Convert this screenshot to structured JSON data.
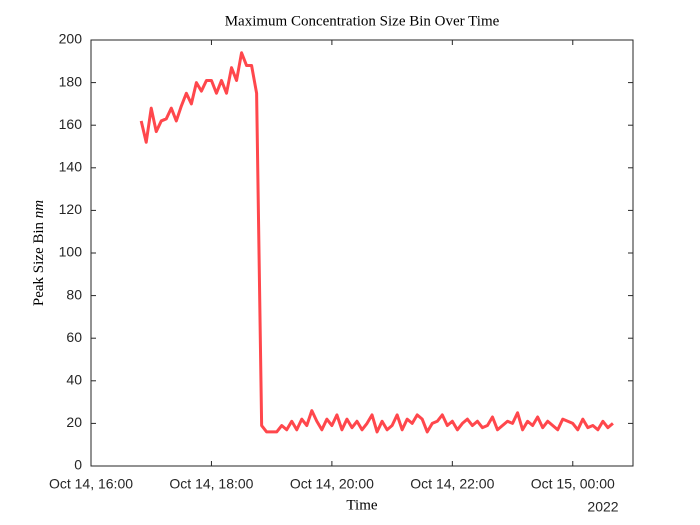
{
  "chart_data": {
    "type": "line",
    "title": "Maximum Concentration Size Bin Over Time",
    "xlabel": "Time",
    "ylabel": "Peak Size Bin",
    "ylabel_unit": "nm",
    "xtick_year_label": "2022",
    "xlim": [
      "2022-10-14 16:00",
      "2022-10-15 01:00"
    ],
    "xticks": [
      {
        "value": "2022-10-14 16:00",
        "label": "Oct 14, 16:00"
      },
      {
        "value": "2022-10-14 18:00",
        "label": "Oct 14, 18:00"
      },
      {
        "value": "2022-10-14 20:00",
        "label": "Oct 14, 20:00"
      },
      {
        "value": "2022-10-14 22:00",
        "label": "Oct 14, 22:00"
      },
      {
        "value": "2022-10-15 00:00",
        "label": "Oct 15, 00:00"
      }
    ],
    "ylim": [
      0,
      200
    ],
    "yticks": [
      0,
      20,
      40,
      60,
      80,
      100,
      120,
      140,
      160,
      180,
      200
    ],
    "x": [
      "2022-10-14 16:50",
      "2022-10-14 16:55",
      "2022-10-14 17:00",
      "2022-10-14 17:05",
      "2022-10-14 17:10",
      "2022-10-14 17:15",
      "2022-10-14 17:20",
      "2022-10-14 17:25",
      "2022-10-14 17:30",
      "2022-10-14 17:35",
      "2022-10-14 17:40",
      "2022-10-14 17:45",
      "2022-10-14 17:50",
      "2022-10-14 17:55",
      "2022-10-14 18:00",
      "2022-10-14 18:05",
      "2022-10-14 18:10",
      "2022-10-14 18:15",
      "2022-10-14 18:20",
      "2022-10-14 18:25",
      "2022-10-14 18:30",
      "2022-10-14 18:35",
      "2022-10-14 18:40",
      "2022-10-14 18:45",
      "2022-10-14 18:50",
      "2022-10-14 18:55",
      "2022-10-14 19:00",
      "2022-10-14 19:05",
      "2022-10-14 19:10",
      "2022-10-14 19:15",
      "2022-10-14 19:20",
      "2022-10-14 19:25",
      "2022-10-14 19:30",
      "2022-10-14 19:35",
      "2022-10-14 19:40",
      "2022-10-14 19:45",
      "2022-10-14 19:50",
      "2022-10-14 19:55",
      "2022-10-14 20:00",
      "2022-10-14 20:05",
      "2022-10-14 20:10",
      "2022-10-14 20:15",
      "2022-10-14 20:20",
      "2022-10-14 20:25",
      "2022-10-14 20:30",
      "2022-10-14 20:35",
      "2022-10-14 20:40",
      "2022-10-14 20:45",
      "2022-10-14 20:50",
      "2022-10-14 20:55",
      "2022-10-14 21:00",
      "2022-10-14 21:05",
      "2022-10-14 21:10",
      "2022-10-14 21:15",
      "2022-10-14 21:20",
      "2022-10-14 21:25",
      "2022-10-14 21:30",
      "2022-10-14 21:35",
      "2022-10-14 21:40",
      "2022-10-14 21:45",
      "2022-10-14 21:50",
      "2022-10-14 21:55",
      "2022-10-14 22:00",
      "2022-10-14 22:05",
      "2022-10-14 22:10",
      "2022-10-14 22:15",
      "2022-10-14 22:20",
      "2022-10-14 22:25",
      "2022-10-14 22:30",
      "2022-10-14 22:35",
      "2022-10-14 22:40",
      "2022-10-14 22:45",
      "2022-10-14 22:50",
      "2022-10-14 22:55",
      "2022-10-14 23:00",
      "2022-10-14 23:05",
      "2022-10-14 23:10",
      "2022-10-14 23:15",
      "2022-10-14 23:20",
      "2022-10-14 23:25",
      "2022-10-14 23:30",
      "2022-10-14 23:35",
      "2022-10-14 23:40",
      "2022-10-14 23:45",
      "2022-10-14 23:50",
      "2022-10-14 23:55",
      "2022-10-15 00:00",
      "2022-10-15 00:05",
      "2022-10-15 00:10",
      "2022-10-15 00:15",
      "2022-10-15 00:20",
      "2022-10-15 00:25",
      "2022-10-15 00:30",
      "2022-10-15 00:35",
      "2022-10-15 00:40"
    ],
    "series": [
      {
        "color": "#ff474c",
        "values": [
          162,
          152,
          168,
          157,
          162,
          163,
          168,
          162,
          169,
          175,
          170,
          180,
          176,
          181,
          181,
          175,
          181,
          175,
          187,
          181,
          194,
          188,
          188,
          175,
          19,
          16,
          16,
          16,
          19,
          17,
          21,
          17,
          22,
          19,
          26,
          21,
          17,
          22,
          19,
          24,
          17,
          22,
          18,
          21,
          17,
          20,
          24,
          16,
          21,
          17,
          19,
          24,
          17,
          22,
          20,
          24,
          22,
          16,
          20,
          21,
          24,
          19,
          21,
          17,
          20,
          22,
          19,
          21,
          18,
          19,
          23,
          17,
          19,
          21,
          20,
          25,
          17,
          21,
          19,
          23,
          18,
          21,
          19,
          17,
          22,
          21,
          20,
          17,
          22,
          18,
          19,
          17,
          21,
          18,
          20
        ]
      }
    ]
  }
}
